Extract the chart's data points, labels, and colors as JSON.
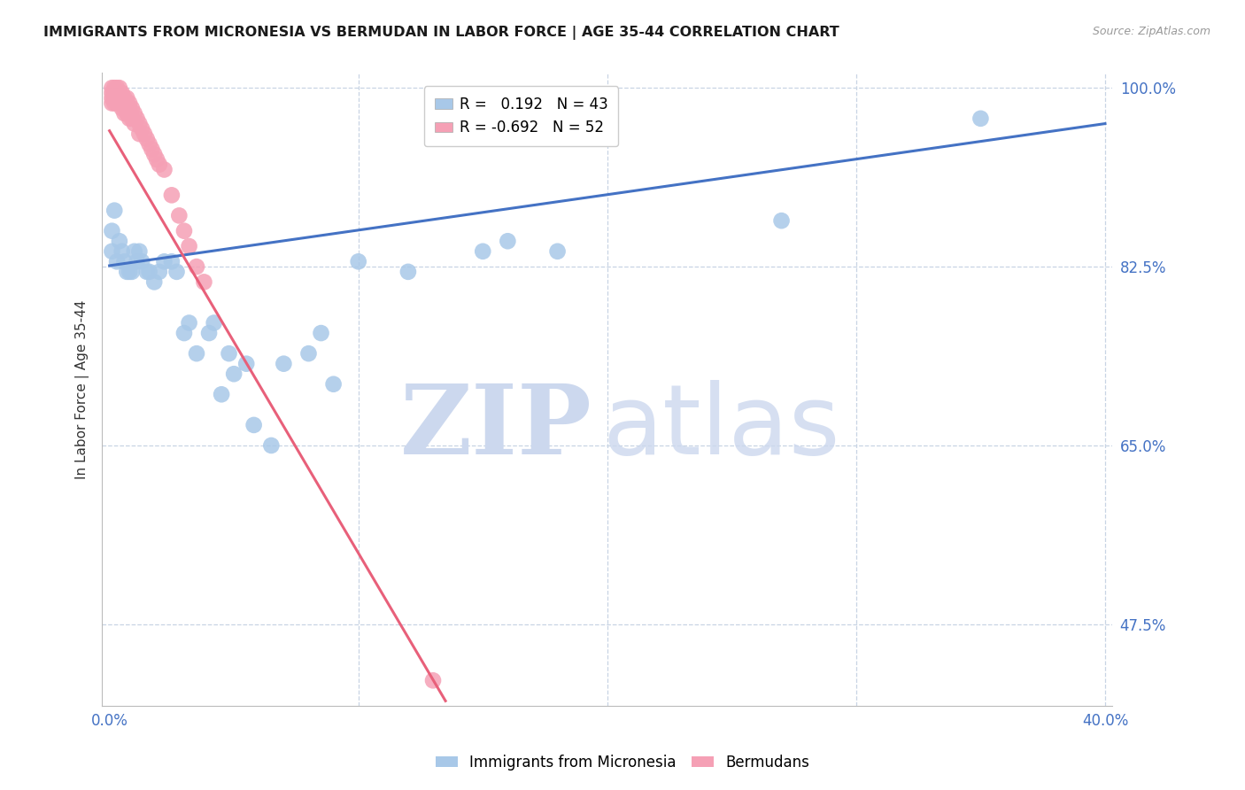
{
  "title": "IMMIGRANTS FROM MICRONESIA VS BERMUDAN IN LABOR FORCE | AGE 35-44 CORRELATION CHART",
  "source": "Source: ZipAtlas.com",
  "ylabel": "In Labor Force | Age 35-44",
  "xlim": [
    -0.003,
    0.403
  ],
  "ylim": [
    0.395,
    1.015
  ],
  "ytick_vals": [
    1.0,
    0.825,
    0.65,
    0.475
  ],
  "xtick_vals": [
    0.0,
    0.1,
    0.2,
    0.3,
    0.4
  ],
  "micronesia_color": "#a8c8e8",
  "bermuda_color": "#f5a0b5",
  "blue_line_color": "#4472c4",
  "pink_line_color": "#e8607a",
  "grid_color": "#c8d4e4",
  "title_color": "#1a1a1a",
  "source_color": "#999999",
  "axis_label_color": "#333333",
  "tick_color_right": "#4472c4",
  "tick_color_bottom": "#4472c4",
  "watermark_zip_color": "#ccd8ee",
  "watermark_atlas_color": "#ccd8ee",
  "micronesia_x": [
    0.001,
    0.001,
    0.002,
    0.003,
    0.004,
    0.005,
    0.006,
    0.007,
    0.008,
    0.009,
    0.01,
    0.011,
    0.012,
    0.013,
    0.015,
    0.016,
    0.018,
    0.02,
    0.022,
    0.025,
    0.027,
    0.03,
    0.032,
    0.035,
    0.04,
    0.042,
    0.045,
    0.048,
    0.05,
    0.055,
    0.058,
    0.065,
    0.07,
    0.08,
    0.085,
    0.09,
    0.1,
    0.12,
    0.15,
    0.16,
    0.18,
    0.27,
    0.35
  ],
  "micronesia_y": [
    0.86,
    0.84,
    0.88,
    0.83,
    0.85,
    0.84,
    0.83,
    0.82,
    0.82,
    0.82,
    0.84,
    0.83,
    0.84,
    0.83,
    0.82,
    0.82,
    0.81,
    0.82,
    0.83,
    0.83,
    0.82,
    0.76,
    0.77,
    0.74,
    0.76,
    0.77,
    0.7,
    0.74,
    0.72,
    0.73,
    0.67,
    0.65,
    0.73,
    0.74,
    0.76,
    0.71,
    0.83,
    0.82,
    0.84,
    0.85,
    0.84,
    0.87,
    0.97
  ],
  "bermuda_x": [
    0.001,
    0.001,
    0.001,
    0.001,
    0.002,
    0.002,
    0.002,
    0.002,
    0.003,
    0.003,
    0.003,
    0.003,
    0.004,
    0.004,
    0.004,
    0.004,
    0.005,
    0.005,
    0.005,
    0.005,
    0.006,
    0.006,
    0.006,
    0.007,
    0.007,
    0.007,
    0.008,
    0.008,
    0.008,
    0.009,
    0.009,
    0.01,
    0.01,
    0.011,
    0.012,
    0.012,
    0.013,
    0.014,
    0.015,
    0.016,
    0.017,
    0.018,
    0.019,
    0.02,
    0.022,
    0.025,
    0.028,
    0.03,
    0.032,
    0.035,
    0.038,
    0.13
  ],
  "bermuda_y": [
    1.0,
    0.995,
    0.99,
    0.985,
    1.0,
    0.995,
    0.99,
    0.985,
    1.0,
    0.995,
    0.99,
    0.985,
    1.0,
    0.995,
    0.99,
    0.985,
    0.995,
    0.99,
    0.985,
    0.98,
    0.99,
    0.985,
    0.975,
    0.99,
    0.985,
    0.975,
    0.985,
    0.98,
    0.97,
    0.98,
    0.97,
    0.975,
    0.965,
    0.97,
    0.965,
    0.955,
    0.96,
    0.955,
    0.95,
    0.945,
    0.94,
    0.935,
    0.93,
    0.925,
    0.92,
    0.895,
    0.875,
    0.86,
    0.845,
    0.825,
    0.81,
    0.42
  ],
  "blue_line_x": [
    0.0,
    0.4
  ],
  "blue_line_y": [
    0.826,
    0.965
  ],
  "pink_line_x": [
    0.0,
    0.135
  ],
  "pink_line_y": [
    0.958,
    0.4
  ],
  "R_micro": "0.192",
  "N_micro": "43",
  "R_ber": "-0.692",
  "N_ber": "52",
  "legend_label_micro": "Immigrants from Micronesia",
  "legend_label_ber": "Bermudans",
  "title_fontsize": 11.5,
  "ylabel_fontsize": 11,
  "tick_fontsize": 12,
  "legend_fontsize": 12
}
